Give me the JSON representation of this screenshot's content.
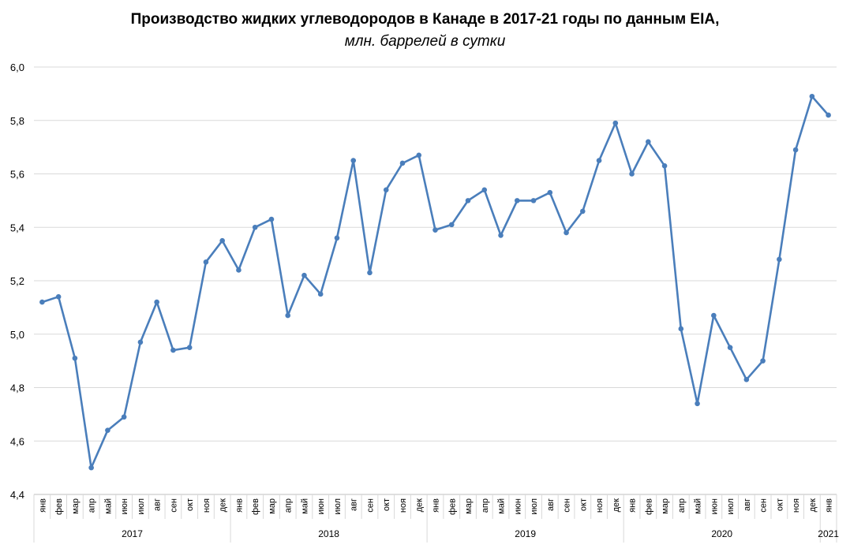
{
  "chart_data": {
    "type": "line",
    "title": "Производство жидких углеводородов в Канаде в 2017-21 годы по данным EIA,",
    "subtitle": "млн. баррелей в сутки",
    "ylim": [
      4.4,
      6.0
    ],
    "yticks": [
      "4,4",
      "4,6",
      "4,8",
      "5,0",
      "5,2",
      "5,4",
      "5,6",
      "5,8",
      "6,0"
    ],
    "grid": true,
    "legend": "none",
    "color": "#4a7ebb",
    "categories": [
      "янв",
      "фев",
      "мар",
      "апр",
      "май",
      "июн",
      "июл",
      "авг",
      "сен",
      "окт",
      "ноя",
      "дек",
      "янв",
      "фев",
      "мар",
      "апр",
      "май",
      "июн",
      "июл",
      "авг",
      "сен",
      "окт",
      "ноя",
      "дек",
      "янв",
      "фев",
      "мар",
      "апр",
      "май",
      "июн",
      "июл",
      "авг",
      "сен",
      "окт",
      "ноя",
      "дек",
      "янв",
      "фев",
      "мар",
      "апр",
      "май",
      "июн",
      "июл",
      "авг",
      "сен",
      "окт",
      "ноя",
      "дек",
      "янв"
    ],
    "years": [
      {
        "label": "2017",
        "months": 12
      },
      {
        "label": "2018",
        "months": 12
      },
      {
        "label": "2019",
        "months": 12
      },
      {
        "label": "2020",
        "months": 12
      },
      {
        "label": "2021",
        "months": 1
      }
    ],
    "values": [
      5.12,
      5.14,
      4.91,
      4.5,
      4.64,
      4.69,
      4.97,
      5.12,
      4.94,
      4.95,
      5.27,
      5.35,
      5.24,
      5.4,
      5.43,
      5.07,
      5.22,
      5.15,
      5.36,
      5.65,
      5.23,
      5.54,
      5.64,
      5.67,
      5.39,
      5.41,
      5.5,
      5.54,
      5.37,
      5.5,
      5.5,
      5.53,
      5.38,
      5.46,
      5.65,
      5.79,
      5.6,
      5.72,
      5.63,
      5.02,
      4.74,
      5.07,
      4.95,
      4.83,
      4.9,
      5.28,
      5.69,
      5.89,
      5.82
    ]
  }
}
